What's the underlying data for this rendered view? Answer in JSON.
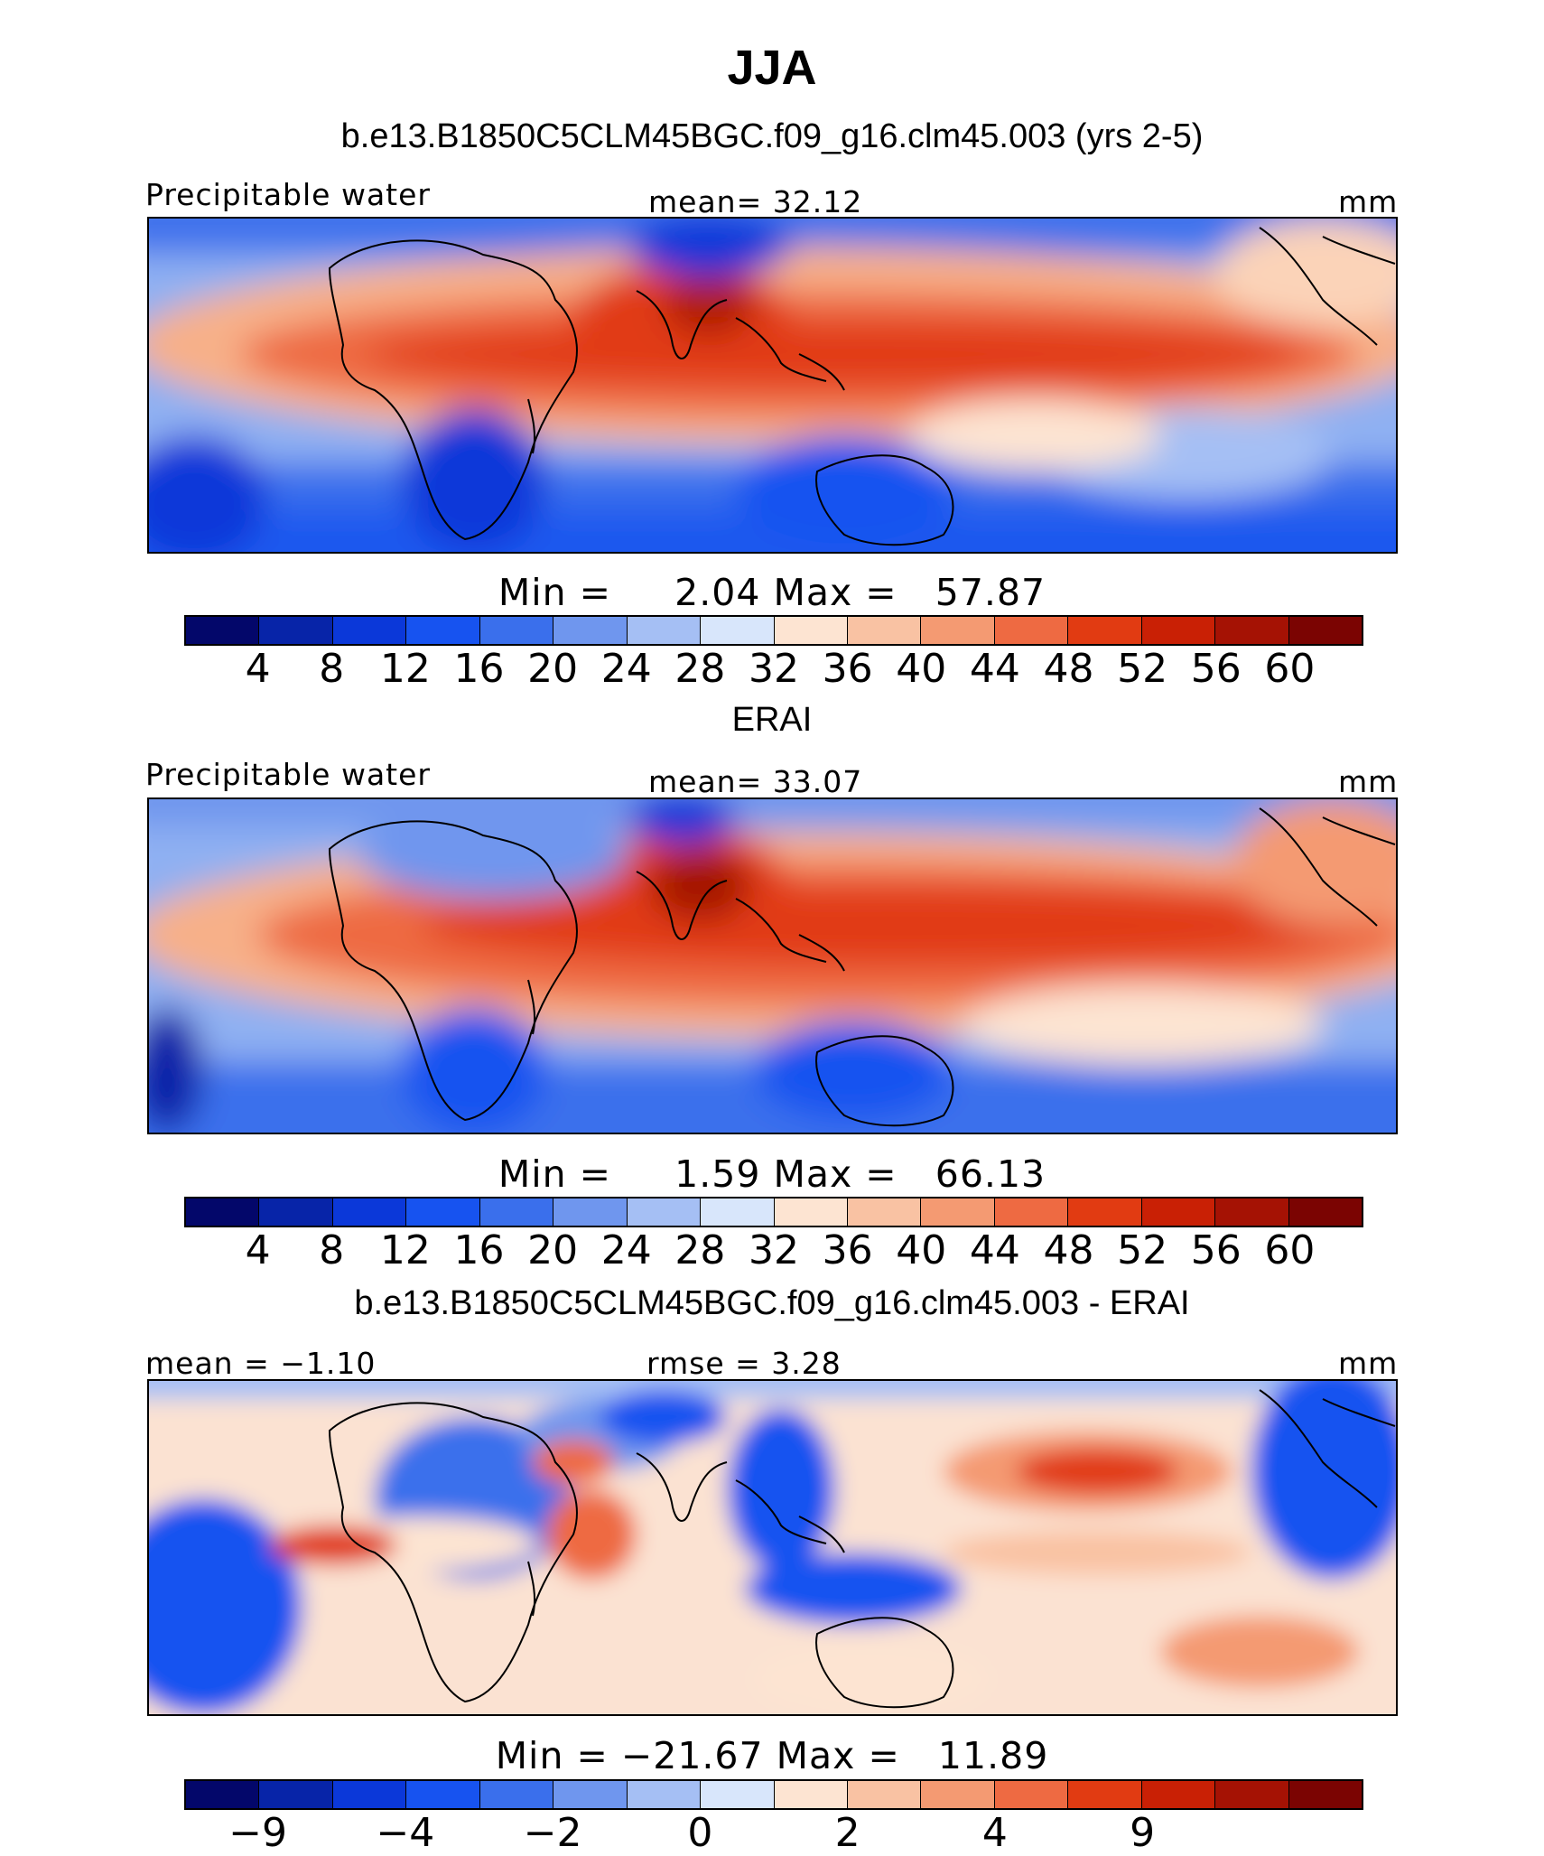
{
  "figure": {
    "season": "JJA"
  },
  "panels": [
    {
      "title": "b.e13.B1850C5CLM45BGC.f09_g16.clm45.003 (yrs 2-5)",
      "left_label": "Precipitable water",
      "center_label": "mean=  32.12",
      "units": "mm",
      "min_label": "Min  =",
      "min_value": "2.04",
      "max_label": "Max  =",
      "max_value": "57.87",
      "colorbar": {
        "colors": [
          "#03076a",
          "#0724a8",
          "#0b38d9",
          "#1753f0",
          "#3a6fec",
          "#6f96ee",
          "#a5bff4",
          "#d8e6fb",
          "#fde4d2",
          "#f9c2a3",
          "#f49a72",
          "#ee6a42",
          "#e13b12",
          "#c92005",
          "#a51204",
          "#7b0402"
        ],
        "ticks": [
          "4",
          "8",
          "12",
          "16",
          "20",
          "24",
          "28",
          "32",
          "36",
          "40",
          "44",
          "48",
          "52",
          "56",
          "60"
        ]
      }
    },
    {
      "title": "ERAI",
      "left_label": "Precipitable water",
      "center_label": "mean=  33.07",
      "units": "mm",
      "min_label": "Min  =",
      "min_value": "1.59",
      "max_label": "Max  =",
      "max_value": "66.13",
      "colorbar": {
        "colors": [
          "#03076a",
          "#0724a8",
          "#0b38d9",
          "#1753f0",
          "#3a6fec",
          "#6f96ee",
          "#a5bff4",
          "#d8e6fb",
          "#fde4d2",
          "#f9c2a3",
          "#f49a72",
          "#ee6a42",
          "#e13b12",
          "#c92005",
          "#a51204",
          "#7b0402"
        ],
        "ticks": [
          "4",
          "8",
          "12",
          "16",
          "20",
          "24",
          "28",
          "32",
          "36",
          "40",
          "44",
          "48",
          "52",
          "56",
          "60"
        ]
      }
    },
    {
      "title": "b.e13.B1850C5CLM45BGC.f09_g16.clm45.003 - ERAI",
      "left_label": "mean =  −1.10",
      "center_label": "rmse =   3.28",
      "units": "mm",
      "min_label": "Min  =",
      "min_value": "−21.67",
      "max_label": "Max  =",
      "max_value": "11.89",
      "colorbar": {
        "colors": [
          "#03076a",
          "#0724a8",
          "#0b38d9",
          "#1753f0",
          "#3a6fec",
          "#6f96ee",
          "#a5bff4",
          "#d8e6fb",
          "#fde4d2",
          "#f9c2a3",
          "#f49a72",
          "#ee6a42",
          "#e13b12",
          "#c92005",
          "#a51204",
          "#7b0402"
        ],
        "ticks": [
          "−9",
          "−4",
          "−2",
          "0",
          "2",
          "4",
          "9"
        ]
      }
    }
  ]
}
